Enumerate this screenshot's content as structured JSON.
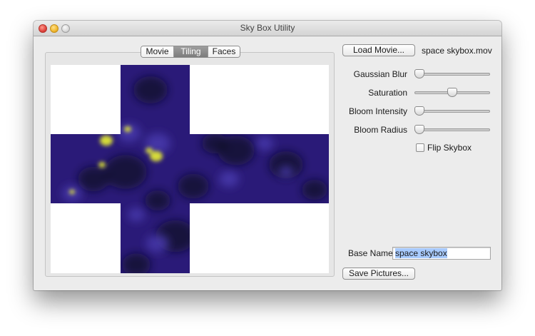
{
  "window": {
    "title": "Sky Box Utility"
  },
  "tabs": [
    {
      "label": "Movie",
      "selected": false
    },
    {
      "label": "Tiling",
      "selected": true
    },
    {
      "label": "Faces",
      "selected": false
    }
  ],
  "preview": {
    "layout": "cross",
    "sky_color": "#2a1a78",
    "dark_color": "#0d0a26",
    "highlight_color": "#e8f030",
    "background": "#ffffff"
  },
  "controls": {
    "load_button_label": "Load Movie...",
    "movie_filename": "space skybox.mov",
    "sliders": [
      {
        "label": "Gaussian Blur",
        "value": 0.0
      },
      {
        "label": "Saturation",
        "value": 0.5
      },
      {
        "label": "Bloom Intensity",
        "value": 0.0
      },
      {
        "label": "Bloom Radius",
        "value": 0.0
      }
    ],
    "flip_label": "Flip Skybox",
    "flip_checked": false,
    "base_name_label": "Base Name",
    "base_name_value": "space skybox",
    "save_button_label": "Save Pictures..."
  }
}
